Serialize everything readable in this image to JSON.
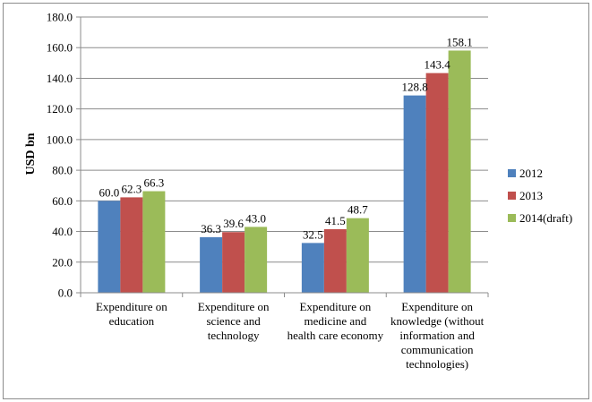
{
  "chart_data": {
    "type": "bar",
    "ylabel": "USD bn",
    "ylim": [
      0,
      180
    ],
    "ytick_step": 20,
    "ytick_labels": [
      "0.0",
      "20.0",
      "40.0",
      "60.0",
      "80.0",
      "100.0",
      "120.0",
      "140.0",
      "160.0",
      "180.0"
    ],
    "grid": true,
    "legend_position": "right",
    "categories": [
      [
        "Expenditure on",
        "education"
      ],
      [
        "Expenditure on",
        "science and",
        "technology"
      ],
      [
        "Expenditure on",
        "medicine and",
        "health care economy"
      ],
      [
        "Expenditure on",
        "knowledge (without",
        "information and",
        "communication",
        "technologies)"
      ]
    ],
    "series": [
      {
        "name": "2012",
        "color": "#4f81bd",
        "values": [
          60.0,
          36.3,
          32.5,
          128.8
        ],
        "labels": [
          "60.0",
          "36.3",
          "32.5",
          "128.8"
        ]
      },
      {
        "name": "2013",
        "color": "#c0504d",
        "values": [
          62.3,
          39.6,
          41.5,
          143.4
        ],
        "labels": [
          "62.3",
          "39.6",
          "41.5",
          "143.4"
        ]
      },
      {
        "name": "2014(draft)",
        "color": "#9bbb59",
        "values": [
          66.3,
          43.0,
          48.7,
          158.1
        ],
        "labels": [
          "66.3",
          "43.0",
          "48.7",
          "158.1"
        ]
      }
    ]
  }
}
